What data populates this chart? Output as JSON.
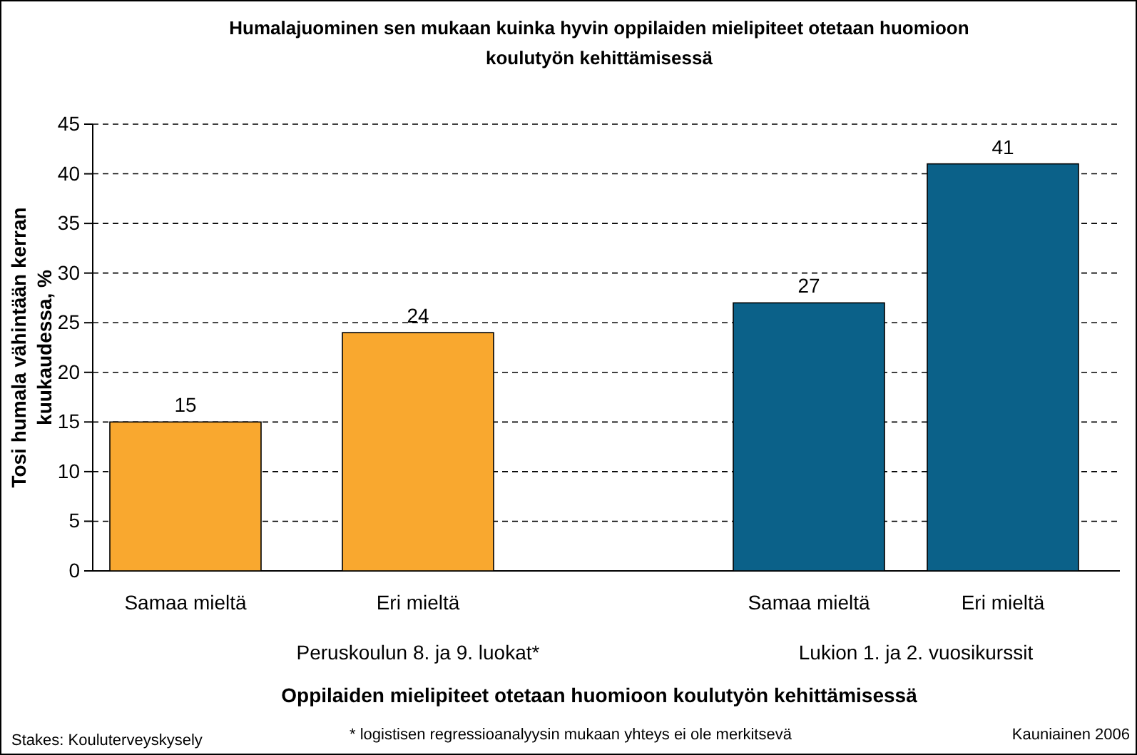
{
  "chart_data": {
    "type": "bar",
    "title": "Humalajuominen sen mukaan kuinka hyvin oppilaiden mielipiteet otetaan huomioon koulutyön kehittämisessä",
    "xlabel": "Oppilaiden mielipiteet otetaan huomioon koulutyön kehittämisessä",
    "ylabel": "Tosi humala vähintään kerran kuukaudessa, %",
    "categories": [
      "Samaa mieltä",
      "Eri mieltä",
      null,
      "Samaa mieltä",
      "Eri mieltä"
    ],
    "values": [
      15,
      24,
      null,
      27,
      41
    ],
    "colors": [
      "#f9a82f",
      "#f9a82f",
      null,
      "#0b6189",
      "#0b6189"
    ],
    "ylim": [
      0,
      45
    ],
    "yticks": [
      0,
      5,
      10,
      15,
      20,
      25,
      30,
      35,
      40,
      45
    ],
    "grid": "y",
    "data_labels": true,
    "annotations": [
      "Peruskoulun 8. ja 9. luokat*",
      "Lukion 1. ja 2. vuosikurssit",
      "Stakes: Kouluterveyskysely",
      "* logistisen regressioanalyysin mukaan yhteys ei ole merkitsevä",
      "Kauniainen 2006"
    ]
  }
}
